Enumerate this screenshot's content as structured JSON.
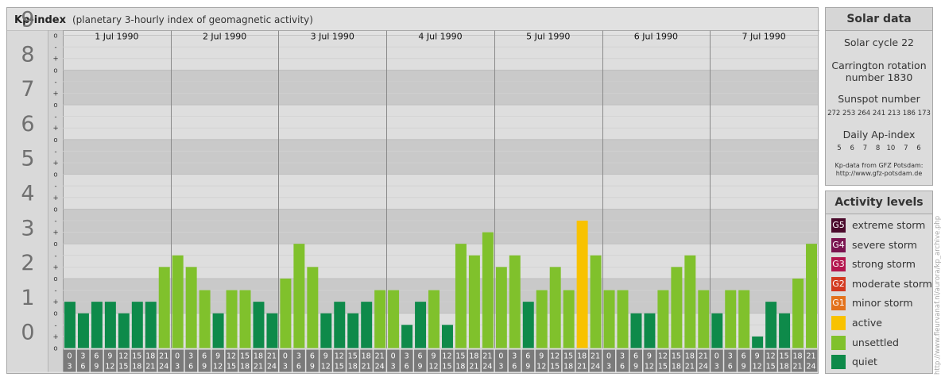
{
  "header": {
    "title": "Kp-index",
    "subtitle": "(planetary 3-hourly index of geomagnetic activity)"
  },
  "chart_data": {
    "type": "bar",
    "title": "Kp-index",
    "subtitle": "(planetary 3-hourly index of geomagnetic activity)",
    "ylim": [
      0,
      9
    ],
    "y_tick_labels": [
      "0",
      "1",
      "2",
      "3",
      "4",
      "5",
      "6",
      "7",
      "8",
      "9"
    ],
    "y_subtick_labels": [
      "o",
      "+",
      "-"
    ],
    "days": [
      "1 Jul 1990",
      "2 Jul 1990",
      "3 Jul 1990",
      "4 Jul 1990",
      "5 Jul 1990",
      "6 Jul 1990",
      "7 Jul 1990"
    ],
    "interval_start_labels": [
      "0",
      "3",
      "6",
      "9",
      "12",
      "15",
      "18",
      "21"
    ],
    "interval_end_labels": [
      "3",
      "6",
      "9",
      "12",
      "15",
      "18",
      "21",
      "24"
    ],
    "values": [
      1.333,
      1.0,
      1.333,
      1.333,
      1.0,
      1.333,
      1.333,
      2.333,
      2.667,
      2.333,
      1.667,
      1.0,
      1.667,
      1.667,
      1.333,
      1.0,
      2.0,
      3.0,
      2.333,
      1.0,
      1.333,
      1.0,
      1.333,
      1.667,
      1.667,
      0.667,
      1.333,
      1.667,
      0.667,
      3.0,
      2.667,
      3.333,
      2.333,
      2.667,
      1.333,
      1.667,
      2.333,
      1.667,
      3.667,
      2.667,
      1.667,
      1.667,
      1.0,
      1.0,
      1.667,
      2.333,
      2.667,
      1.667,
      1.0,
      1.667,
      1.667,
      0.333,
      1.333,
      1.0,
      2.0,
      3.0
    ],
    "legend": [
      {
        "code": "G5",
        "label": "extreme storm",
        "color": "#4a0a2c"
      },
      {
        "code": "G4",
        "label": "severe storm",
        "color": "#7a1450"
      },
      {
        "code": "G3",
        "label": "strong storm",
        "color": "#b4164e"
      },
      {
        "code": "G2",
        "label": "moderate storm",
        "color": "#d33a20"
      },
      {
        "code": "G1",
        "label": "minor storm",
        "color": "#e3721c"
      },
      {
        "code": "",
        "label": "active",
        "color": "#f8c200"
      },
      {
        "code": "",
        "label": "unsettled",
        "color": "#80c12c"
      },
      {
        "code": "",
        "label": "quiet",
        "color": "#0e8a4a"
      }
    ],
    "grid": true
  },
  "solar": {
    "title": "Solar data",
    "cycle": "Solar cycle 22",
    "carrington_line1": "Carrington rotation",
    "carrington_line2": "number 1830",
    "sunspot_title": "Sunspot number",
    "sunspot_values": "272 253 264 241 213 186 173",
    "ap_title": "Daily Ap-index",
    "ap_values": "5    6    7    8   10    7    6",
    "source_line1": "Kp-data from GFZ Potsdam:",
    "source_line2": "http://www.gfz-potsdam.de"
  },
  "activity": {
    "title": "Activity levels"
  },
  "watermark": "http://www.fleurvanaf.nl/aurora/kp_archive.php"
}
